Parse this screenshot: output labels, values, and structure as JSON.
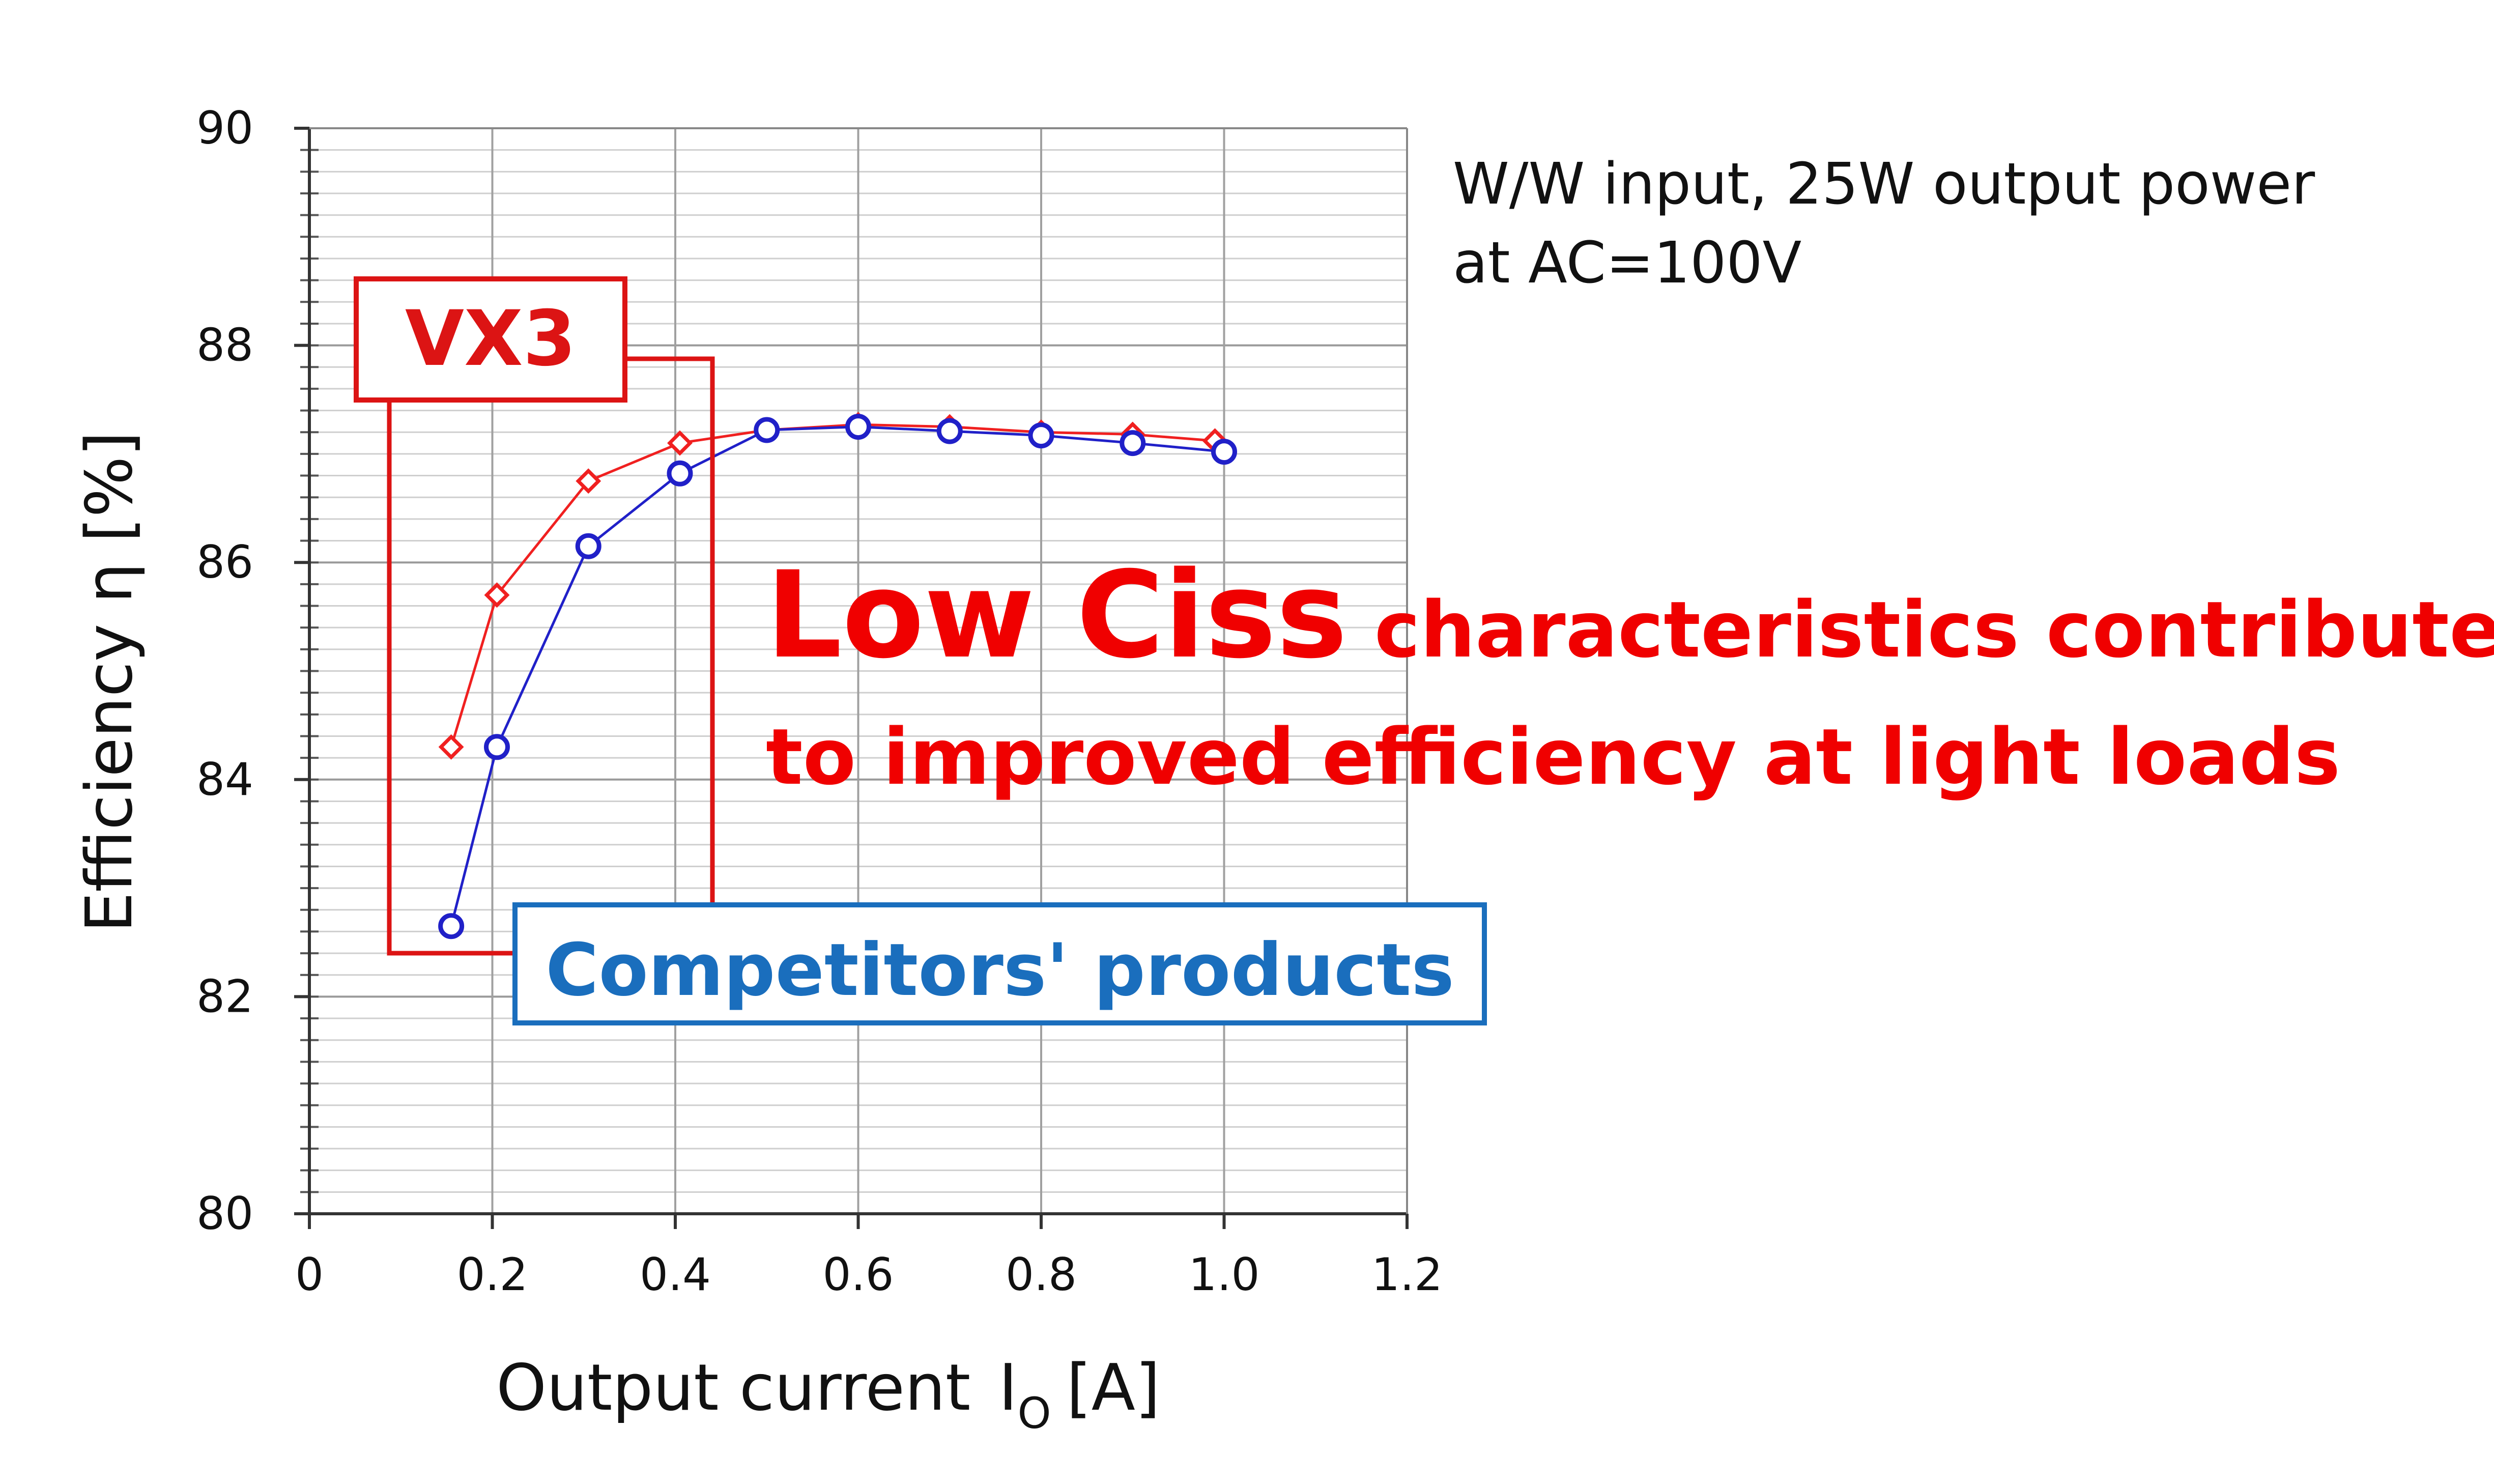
{
  "chart_data": {
    "type": "line",
    "title": "",
    "xlabel": "Output current",
    "xlabel_symbol": "I",
    "xlabel_subscript": "O",
    "xlabel_unit": "[A]",
    "ylabel": "Efficiency η [%]",
    "xlim": [
      0,
      1.2
    ],
    "ylim": [
      80,
      90
    ],
    "x_ticks": [
      "0",
      "0.2",
      "0.4",
      "0.6",
      "0.8",
      "1.0",
      "1.2"
    ],
    "y_ticks": [
      "80",
      "82",
      "84",
      "86",
      "88",
      "90"
    ],
    "grid": true,
    "series": [
      {
        "name": "VX3",
        "color": "#f02020",
        "marker": "diamond",
        "x": [
          0.155,
          0.205,
          0.305,
          0.405,
          0.5,
          0.6,
          0.7,
          0.8,
          0.9,
          0.99
        ],
        "y": [
          84.3,
          85.7,
          86.75,
          87.1,
          87.22,
          87.27,
          87.25,
          87.2,
          87.18,
          87.12
        ]
      },
      {
        "name": "Competitors' products",
        "color": "#2020c8",
        "marker": "circle",
        "x": [
          0.155,
          0.205,
          0.305,
          0.405,
          0.5,
          0.6,
          0.7,
          0.8,
          0.9,
          1.0
        ],
        "y": [
          82.65,
          84.3,
          86.15,
          86.82,
          87.22,
          87.25,
          87.21,
          87.17,
          87.1,
          87.02
        ]
      }
    ],
    "annotations": {
      "condition_line1": "W/W input, 25W output power",
      "condition_line2": "at AC=100V",
      "highlight_large": "Low Ciss",
      "highlight_line1_rest": " characteristics contribute",
      "highlight_line2": "to improved efficiency at light loads"
    },
    "colors": {
      "vx3_box": "#dc1414",
      "competitor_box": "#1a6ebd",
      "highlight_text": "#f00000"
    }
  }
}
